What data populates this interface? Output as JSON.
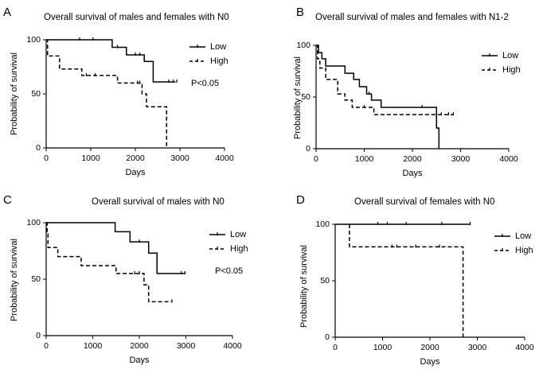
{
  "chart_data": [
    {
      "type": "line",
      "panel_label": "A",
      "title": "Overall survival of males and females with N0",
      "xlabel": "Days",
      "ylabel": "Probability of survival",
      "xlim": [
        0,
        4000
      ],
      "ylim": [
        0,
        100
      ],
      "xticks": [
        "0",
        "1000",
        "2000",
        "3000",
        "4000"
      ],
      "yticks": [
        "0",
        "50",
        "100"
      ],
      "pvalue": "P<0.05",
      "series": [
        {
          "name": "Low",
          "dash": "solid",
          "steps": [
            [
              0,
              100
            ],
            [
              1480,
              100
            ],
            [
              1480,
              93
            ],
            [
              1800,
              93
            ],
            [
              1800,
              86
            ],
            [
              2200,
              86
            ],
            [
              2200,
              80
            ],
            [
              2400,
              80
            ],
            [
              2400,
              61
            ],
            [
              2900,
              61
            ]
          ],
          "censors": [
            [
              750,
              100
            ],
            [
              1050,
              100
            ],
            [
              1600,
              93
            ],
            [
              2000,
              86
            ],
            [
              2100,
              86
            ],
            [
              2750,
              61
            ],
            [
              2850,
              61
            ],
            [
              2930,
              61
            ]
          ]
        },
        {
          "name": "High",
          "dash": "dashed",
          "steps": [
            [
              0,
              100
            ],
            [
              30,
              100
            ],
            [
              30,
              85
            ],
            [
              300,
              85
            ],
            [
              300,
              73
            ],
            [
              800,
              73
            ],
            [
              800,
              67
            ],
            [
              1600,
              67
            ],
            [
              1600,
              60
            ],
            [
              2150,
              60
            ],
            [
              2150,
              50
            ],
            [
              2250,
              50
            ],
            [
              2250,
              38
            ],
            [
              2700,
              38
            ],
            [
              2700,
              0
            ]
          ],
          "censors": [
            [
              900,
              67
            ],
            [
              1100,
              67
            ],
            [
              2050,
              60
            ],
            [
              2100,
              60
            ]
          ]
        }
      ]
    },
    {
      "type": "line",
      "panel_label": "B",
      "title": "Overall survival of males and females with N1-2",
      "xlabel": "Days",
      "ylabel": "Probability of survival",
      "xlim": [
        0,
        4000
      ],
      "ylim": [
        0,
        100
      ],
      "xticks": [
        "0",
        "1000",
        "2000",
        "3000",
        "4000"
      ],
      "yticks": [
        "0",
        "50",
        "100"
      ],
      "series": [
        {
          "name": "Low",
          "dash": "solid",
          "steps": [
            [
              0,
              100
            ],
            [
              50,
              100
            ],
            [
              50,
              93
            ],
            [
              120,
              93
            ],
            [
              120,
              87
            ],
            [
              200,
              87
            ],
            [
              200,
              80
            ],
            [
              600,
              80
            ],
            [
              600,
              73
            ],
            [
              780,
              73
            ],
            [
              780,
              67
            ],
            [
              900,
              67
            ],
            [
              900,
              60
            ],
            [
              1050,
              60
            ],
            [
              1050,
              53
            ],
            [
              1150,
              53
            ],
            [
              1150,
              47
            ],
            [
              1350,
              47
            ],
            [
              1350,
              40
            ],
            [
              2500,
              40
            ],
            [
              2500,
              20
            ],
            [
              2550,
              20
            ],
            [
              2550,
              0
            ]
          ],
          "censors": [
            [
              1100,
              53
            ],
            [
              2200,
              40
            ]
          ]
        },
        {
          "name": "High",
          "dash": "dashed",
          "steps": [
            [
              0,
              100
            ],
            [
              30,
              100
            ],
            [
              30,
              87
            ],
            [
              80,
              87
            ],
            [
              80,
              78
            ],
            [
              200,
              78
            ],
            [
              200,
              67
            ],
            [
              450,
              67
            ],
            [
              450,
              53
            ],
            [
              600,
              53
            ],
            [
              600,
              47
            ],
            [
              750,
              47
            ],
            [
              750,
              40
            ],
            [
              1200,
              40
            ],
            [
              1200,
              33
            ],
            [
              2850,
              33
            ]
          ],
          "censors": [
            [
              1000,
              40
            ],
            [
              2600,
              33
            ],
            [
              2750,
              33
            ],
            [
              2850,
              33
            ]
          ]
        }
      ]
    },
    {
      "type": "line",
      "panel_label": "C",
      "title": "Overall survival of males with N0",
      "xlabel": "Days",
      "ylabel": "Probability of survival",
      "xlim": [
        0,
        4000
      ],
      "ylim": [
        0,
        100
      ],
      "xticks": [
        "0",
        "1000",
        "2000",
        "3000",
        "4000"
      ],
      "yticks": [
        "0",
        "50",
        "100"
      ],
      "pvalue": "P<0.05",
      "series": [
        {
          "name": "Low",
          "dash": "solid",
          "steps": [
            [
              0,
              100
            ],
            [
              1480,
              100
            ],
            [
              1480,
              92
            ],
            [
              1800,
              92
            ],
            [
              1800,
              83
            ],
            [
              2200,
              83
            ],
            [
              2200,
              73
            ],
            [
              2380,
              73
            ],
            [
              2380,
              55
            ],
            [
              2980,
              55
            ]
          ],
          "censors": [
            [
              2000,
              83
            ],
            [
              2900,
              55
            ],
            [
              2980,
              55
            ]
          ]
        },
        {
          "name": "High",
          "dash": "dashed",
          "steps": [
            [
              0,
              100
            ],
            [
              20,
              100
            ],
            [
              20,
              90
            ],
            [
              40,
              90
            ],
            [
              40,
              78
            ],
            [
              250,
              78
            ],
            [
              250,
              70
            ],
            [
              750,
              70
            ],
            [
              750,
              62
            ],
            [
              1500,
              62
            ],
            [
              1500,
              55
            ],
            [
              2100,
              55
            ],
            [
              2100,
              45
            ],
            [
              2200,
              45
            ],
            [
              2200,
              30
            ],
            [
              2700,
              30
            ]
          ],
          "censors": [
            [
              1900,
              55
            ],
            [
              2000,
              55
            ],
            [
              2700,
              30
            ]
          ]
        }
      ]
    },
    {
      "type": "line",
      "panel_label": "D",
      "title": "Overall survival of females with N0",
      "xlabel": "Days",
      "ylabel": "Probability of survival",
      "xlim": [
        0,
        4000
      ],
      "ylim": [
        0,
        100
      ],
      "xticks": [
        "0",
        "1000",
        "2000",
        "3000",
        "4000"
      ],
      "yticks": [
        "0",
        "50",
        "100"
      ],
      "series": [
        {
          "name": "Low",
          "dash": "solid",
          "steps": [
            [
              0,
              100
            ],
            [
              2850,
              100
            ]
          ],
          "censors": [
            [
              900,
              100
            ],
            [
              1100,
              100
            ],
            [
              1500,
              100
            ],
            [
              2250,
              100
            ],
            [
              2850,
              100
            ]
          ]
        },
        {
          "name": "High",
          "dash": "dashed",
          "steps": [
            [
              300,
              100
            ],
            [
              300,
              80
            ],
            [
              2700,
              80
            ],
            [
              2700,
              0
            ]
          ],
          "censors": [
            [
              1200,
              80
            ],
            [
              1300,
              80
            ],
            [
              1700,
              80
            ],
            [
              2200,
              80
            ]
          ]
        }
      ]
    }
  ]
}
